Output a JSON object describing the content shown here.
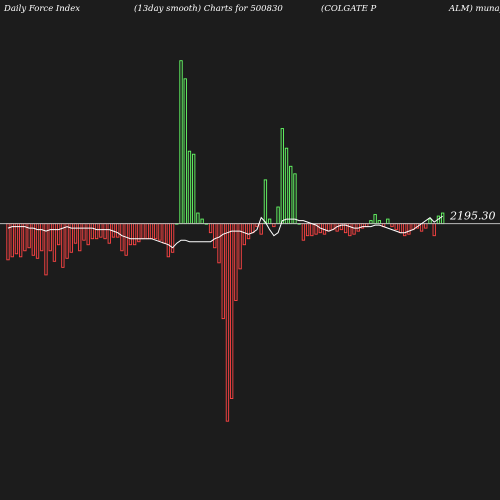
{
  "header": {
    "left": "Daily Force  Index",
    "middle": "(13day smooth) Charts for 500830",
    "right1": "(COLGATE P",
    "right2": "ALM) munafa"
  },
  "colors": {
    "background": "#1c1c1c",
    "positive": "#66ff66",
    "negative": "#ff4444",
    "zero_line": "#bbbbbb",
    "smooth_line": "#ffffff",
    "label": "#ffffff"
  },
  "chart_data": {
    "type": "bar",
    "zero_label": "2195.30",
    "zero_value": 0,
    "ylim": [
      -17,
      13.5
    ],
    "values": [
      -2.4,
      -2.2,
      -2.0,
      -2.2,
      -1.8,
      -1.6,
      -2.1,
      -2.3,
      -1.8,
      -3.4,
      -1.8,
      -2.5,
      -1.4,
      -2.9,
      -2.3,
      -1.9,
      -1.3,
      -1.8,
      -1.1,
      -1.4,
      -1.0,
      -1.0,
      -0.9,
      -1.0,
      -1.3,
      -0.9,
      -0.9,
      -1.8,
      -2.1,
      -1.4,
      -1.4,
      -1.2,
      -1.0,
      -1.0,
      -1.0,
      -1.0,
      -1.1,
      -1.3,
      -2.2,
      -1.9,
      0.0,
      10.8,
      9.6,
      4.8,
      4.6,
      0.7,
      0.3,
      0.0,
      -0.6,
      -1.6,
      -2.6,
      -6.3,
      -13.1,
      -11.6,
      -5.1,
      -3.0,
      -1.4,
      -1.0,
      -0.6,
      -0.2,
      -0.7,
      2.9,
      0.3,
      -0.2,
      1.1,
      6.3,
      5.0,
      3.8,
      3.3,
      0.0,
      -1.1,
      -0.8,
      -0.8,
      -0.7,
      -0.6,
      -0.7,
      -0.5,
      -0.4,
      -0.5,
      -0.4,
      -0.6,
      -0.8,
      -0.7,
      -0.5,
      -0.3,
      -0.2,
      0.2,
      0.6,
      0.2,
      -0.2,
      0.3,
      -0.2,
      -0.4,
      -0.6,
      -0.8,
      -0.7,
      -0.4,
      -0.3,
      -0.5,
      -0.3,
      0.3,
      -0.8,
      0.5,
      0.7
    ],
    "smooth": [
      -0.3,
      -0.2,
      -0.2,
      -0.2,
      -0.2,
      -0.3,
      -0.3,
      -0.4,
      -0.4,
      -0.5,
      -0.4,
      -0.4,
      -0.4,
      -0.3,
      -0.2,
      -0.3,
      -0.3,
      -0.3,
      -0.3,
      -0.3,
      -0.3,
      -0.4,
      -0.4,
      -0.4,
      -0.4,
      -0.5,
      -0.6,
      -0.8,
      -0.9,
      -1.0,
      -1.0,
      -1.0,
      -1.0,
      -1.0,
      -1.0,
      -1.1,
      -1.2,
      -1.3,
      -1.4,
      -1.6,
      -1.3,
      -1.1,
      -1.1,
      -1.2,
      -1.2,
      -1.2,
      -1.2,
      -1.2,
      -1.2,
      -1.0,
      -0.9,
      -0.7,
      -0.6,
      -0.5,
      -0.5,
      -0.5,
      -0.6,
      -0.7,
      -0.6,
      -0.4,
      0.4,
      0.1,
      -0.4,
      -0.8,
      -0.6,
      0.2,
      0.3,
      0.3,
      0.3,
      0.2,
      0.2,
      0.1,
      0.0,
      -0.1,
      -0.3,
      -0.4,
      -0.5,
      -0.4,
      -0.2,
      -0.1,
      -0.1,
      -0.2,
      -0.3,
      -0.3,
      -0.2,
      -0.2,
      -0.2,
      -0.1,
      -0.1,
      -0.2,
      -0.3,
      -0.4,
      -0.5,
      -0.6,
      -0.6,
      -0.5,
      -0.4,
      -0.2,
      0.0,
      0.2,
      0.4,
      0.1,
      0.3,
      0.5
    ]
  }
}
